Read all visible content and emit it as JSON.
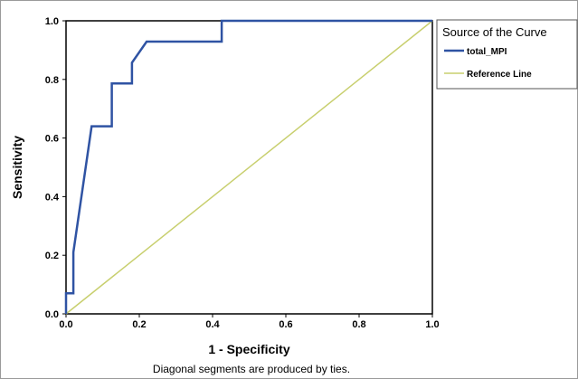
{
  "chart_data": {
    "type": "line",
    "xlabel": "1 - Specificity",
    "ylabel": "Sensitivity",
    "footnote": "Diagonal segments are produced by ties.",
    "xlim": [
      0,
      1
    ],
    "ylim": [
      0,
      1
    ],
    "xticks": [
      "0.0",
      "0.2",
      "0.4",
      "0.6",
      "0.8",
      "1.0"
    ],
    "yticks": [
      "0.0",
      "0.2",
      "0.4",
      "0.6",
      "0.8",
      "1.0"
    ],
    "grid": false,
    "legend": {
      "title": "Source of the Curve",
      "placement": "right",
      "entries": [
        "total_MPI",
        "Reference Line"
      ]
    },
    "series": [
      {
        "name": "total_MPI",
        "color": "#2f53a3",
        "points": [
          [
            0.0,
            0.0
          ],
          [
            0.0,
            0.07
          ],
          [
            0.02,
            0.07
          ],
          [
            0.02,
            0.21
          ],
          [
            0.07,
            0.64
          ],
          [
            0.125,
            0.64
          ],
          [
            0.125,
            0.786
          ],
          [
            0.18,
            0.786
          ],
          [
            0.18,
            0.857
          ],
          [
            0.22,
            0.929
          ],
          [
            0.425,
            0.929
          ],
          [
            0.425,
            1.0
          ],
          [
            1.0,
            1.0
          ]
        ]
      },
      {
        "name": "Reference Line",
        "color": "#c8cf6e",
        "points": [
          [
            0,
            0
          ],
          [
            1,
            1
          ]
        ]
      }
    ]
  }
}
